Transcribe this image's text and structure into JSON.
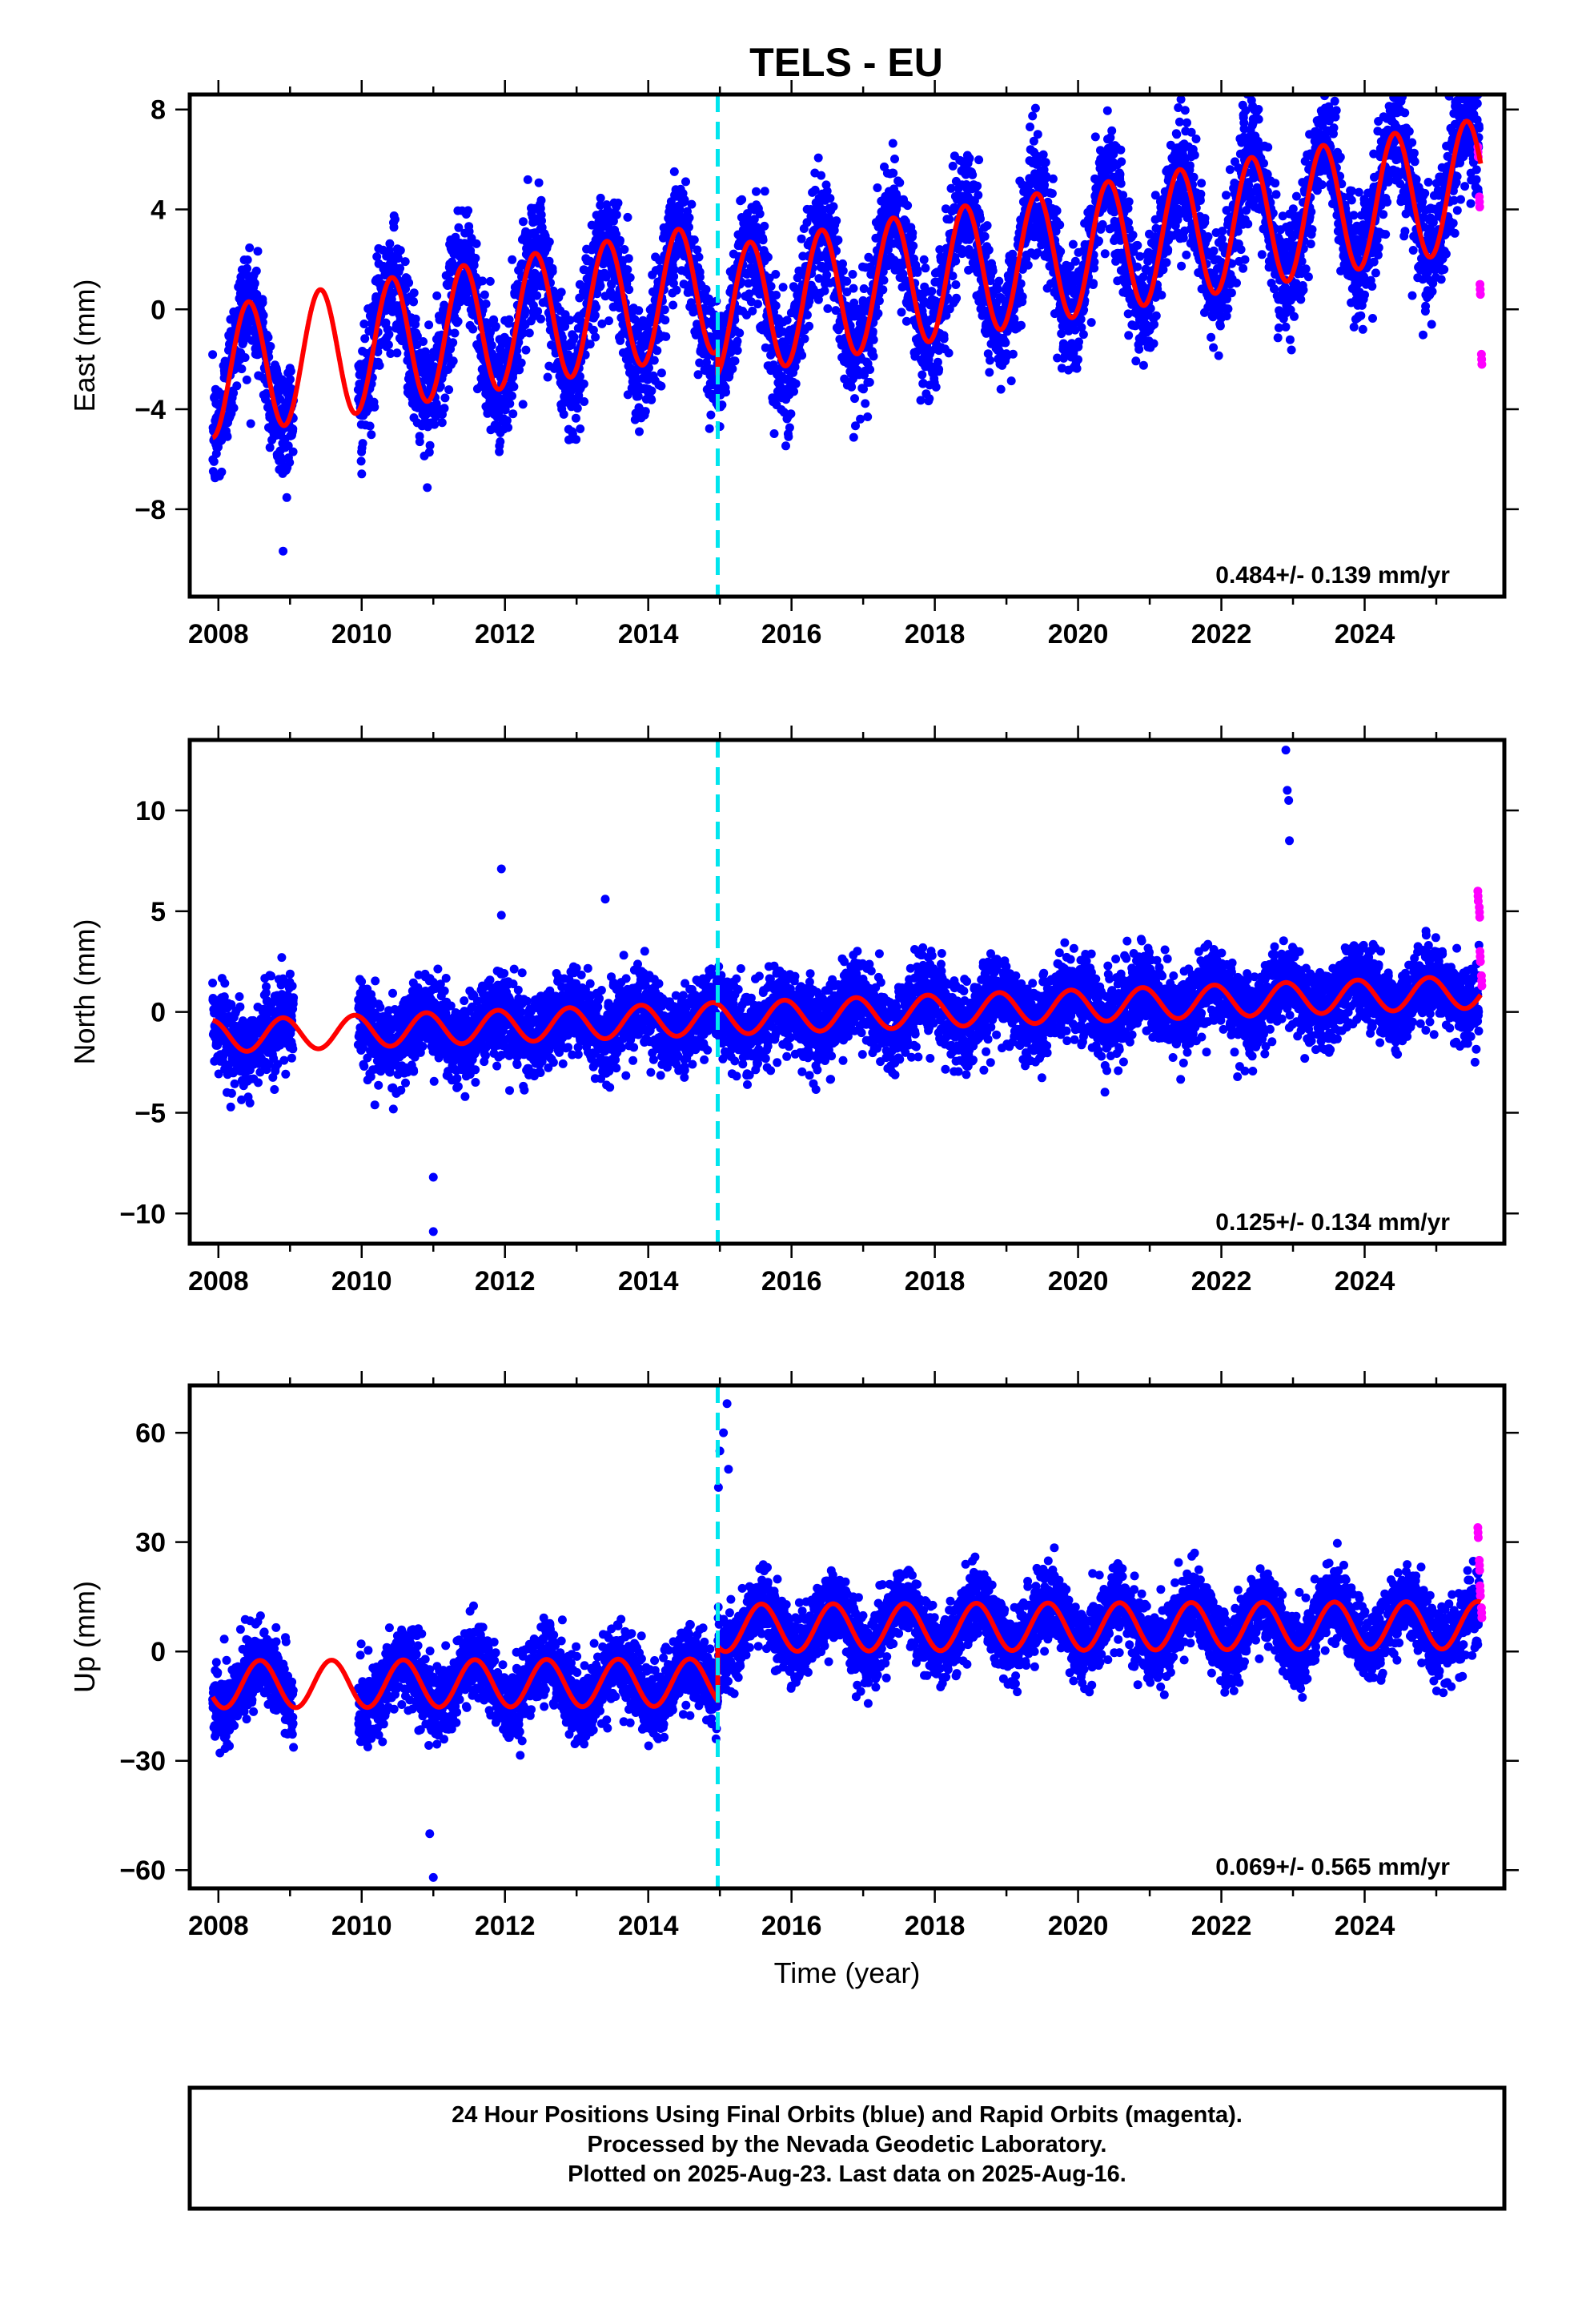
{
  "figure": {
    "title": "TELS - EU",
    "footer": [
      "24 Hour Positions Using Final Orbits (blue) and Rapid Orbits (magenta).",
      "Processed by the Nevada Geodetic Laboratory.",
      "Plotted on 2025-Aug-23. Last data on 2025-Aug-16."
    ],
    "colors": {
      "final_orbits": "#0000ff",
      "rapid_orbits": "#ff00ff",
      "model_fit": "#ff0000",
      "equipment_change": "#00e5ee"
    }
  },
  "chart_data": [
    {
      "type": "scatter",
      "panel": "east",
      "ylabel": "East (mm)",
      "xlabel": "",
      "xlim": [
        2007.6,
        2025.95
      ],
      "ylim": [
        -11.5,
        8.6
      ],
      "x_ticks": [
        2008,
        2010,
        2012,
        2014,
        2016,
        2018,
        2020,
        2022,
        2024
      ],
      "y_ticks": [
        -8,
        -4,
        0,
        4,
        8
      ],
      "rate_label": "0.484+/- 0.139 mm/yr",
      "vertical_line_x": 2014.97,
      "model": {
        "trend": 0.484,
        "offset": -2.5,
        "amplitude": 2.6,
        "phase_peak": 0.42,
        "step_at": 2014.97,
        "step": -1.0
      },
      "scatter_sd": 1.2,
      "data_gap": [
        2009.05,
        2009.95
      ],
      "rapid": {
        "x": [
          2025.58,
          2025.6,
          2025.61,
          2025.63
        ],
        "y": [
          6.5,
          4.5,
          1.0,
          -1.8
        ]
      }
    },
    {
      "type": "scatter",
      "panel": "north",
      "ylabel": "North (mm)",
      "xlabel": "",
      "xlim": [
        2007.6,
        2025.95
      ],
      "ylim": [
        -11.5,
        13.5
      ],
      "x_ticks": [
        2008,
        2010,
        2012,
        2014,
        2016,
        2018,
        2020,
        2022,
        2024
      ],
      "y_ticks": [
        -10,
        -5,
        0,
        5,
        10
      ],
      "rate_label": "0.125+/- 0.134 mm/yr",
      "vertical_line_x": 2014.97,
      "model": {
        "trend": 0.125,
        "offset": -1.2,
        "amplitude": 0.8,
        "phase_peak": 0.9,
        "step_at": 2014.97,
        "step": 0.0
      },
      "scatter_sd": 1.0,
      "data_gap": [
        2009.05,
        2009.95
      ],
      "outliers": {
        "x": [
          2011.0,
          2011.0,
          2011.95,
          2011.95,
          2013.4,
          2022.9,
          2022.92,
          2022.94,
          2022.95
        ],
        "y": [
          -8.2,
          -10.9,
          7.1,
          4.8,
          5.6,
          13.0,
          11.0,
          10.5,
          8.5
        ]
      },
      "rapid": {
        "x": [
          2025.58,
          2025.6,
          2025.61,
          2025.63
        ],
        "y": [
          6.0,
          5.2,
          3.0,
          1.8
        ]
      }
    },
    {
      "type": "scatter",
      "panel": "up",
      "ylabel": "Up (mm)",
      "xlabel": "Time (year)",
      "xlim": [
        2007.6,
        2025.95
      ],
      "ylim": [
        -65,
        73
      ],
      "x_ticks": [
        2008,
        2010,
        2012,
        2014,
        2016,
        2018,
        2020,
        2022,
        2024
      ],
      "y_ticks": [
        -60,
        -30,
        0,
        30,
        60
      ],
      "rate_label": "0.069+/- 0.565 mm/yr",
      "vertical_line_x": 2014.97,
      "model": {
        "trend": 0.069,
        "offset": -9.0,
        "amplitude": 6.5,
        "phase_peak": 0.58,
        "step_at": 2014.97,
        "step": 15.0
      },
      "scatter_sd": 5.0,
      "data_gap": [
        2009.05,
        2009.95
      ],
      "outliers": {
        "x": [
          2010.95,
          2011.0,
          2014.98,
          2015.0,
          2015.05,
          2015.1,
          2015.12
        ],
        "y": [
          -50,
          -62,
          45,
          55,
          60,
          68,
          50
        ]
      },
      "rapid": {
        "x": [
          2025.58,
          2025.6,
          2025.61,
          2025.63
        ],
        "y": [
          34,
          25,
          18,
          12
        ]
      }
    }
  ]
}
